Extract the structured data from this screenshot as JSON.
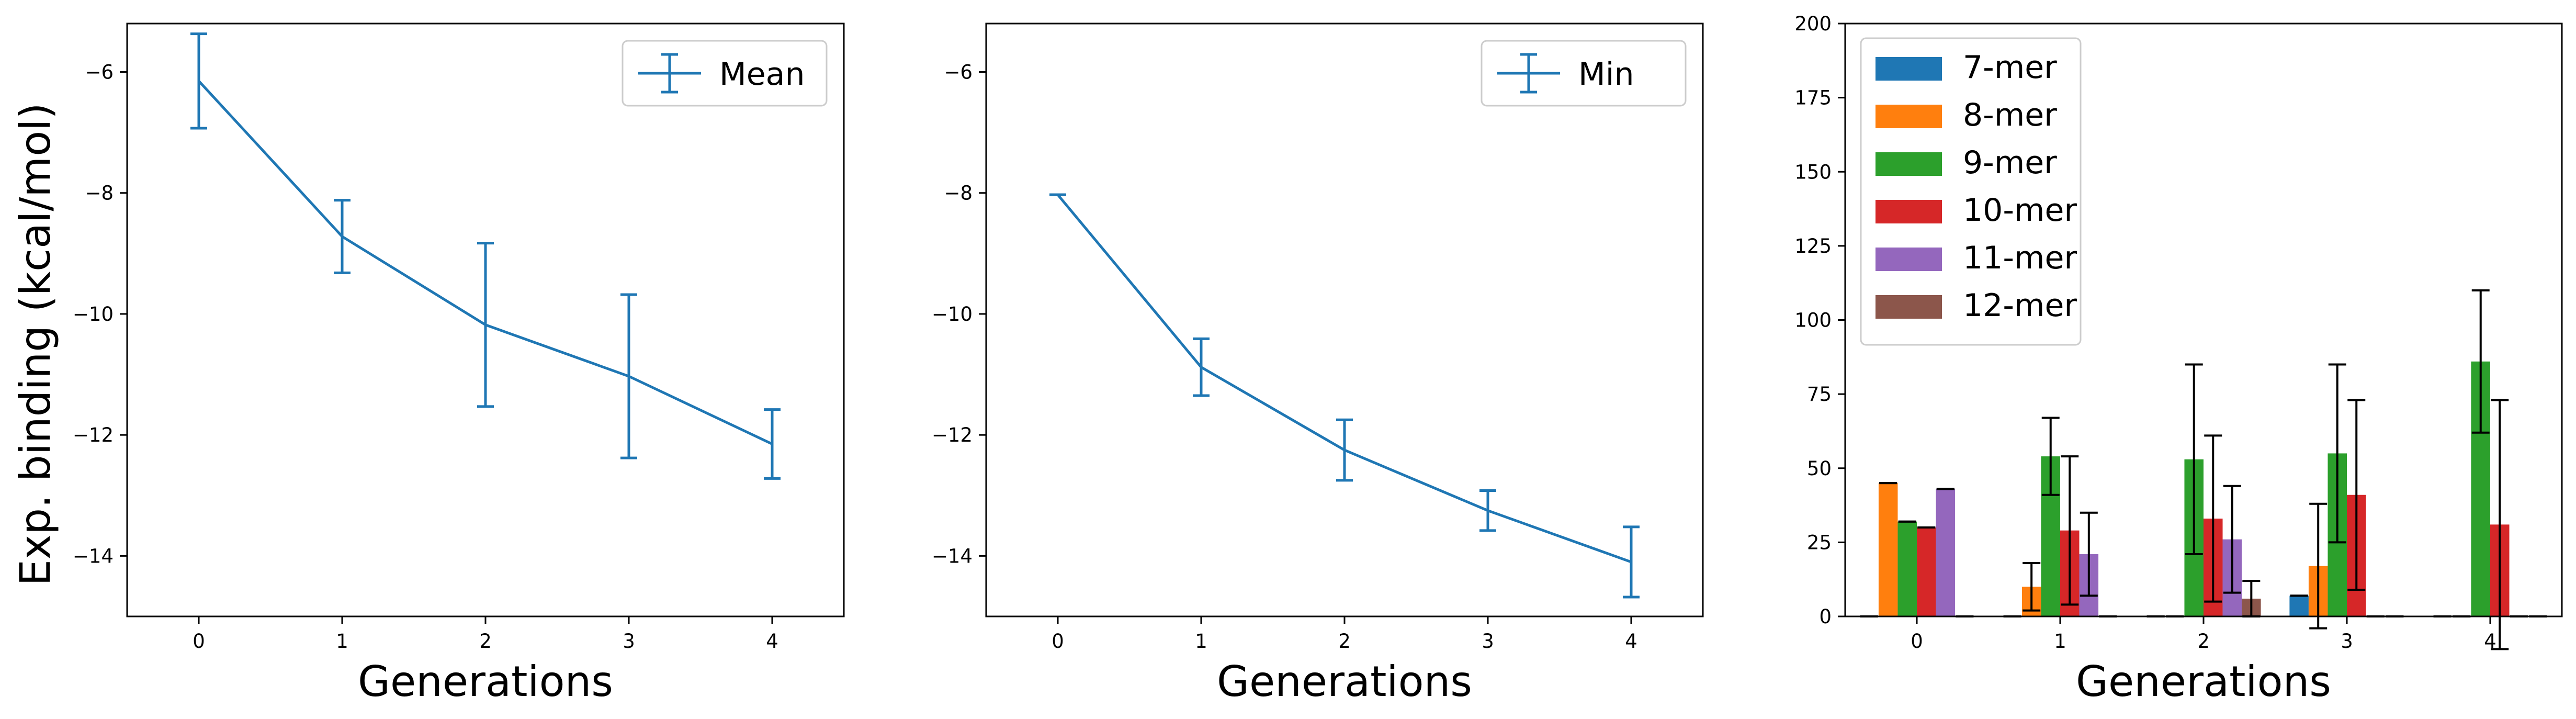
{
  "figure": {
    "shared_ylabel": "Exp. binding (kcal/mol)"
  },
  "chart_data": [
    {
      "type": "line",
      "title": "",
      "xlabel": "Generations",
      "ylabel": "Exp. binding (kcal/mol)",
      "x": [
        0,
        1,
        2,
        3,
        4
      ],
      "xticks": [
        "0",
        "1",
        "2",
        "3",
        "4"
      ],
      "xlim": [
        -0.5,
        4.5
      ],
      "ylim": [
        -15,
        -5.2
      ],
      "yticks": [
        -14,
        -12,
        -10,
        -8,
        -6
      ],
      "ytick_labels": [
        "−14",
        "−12",
        "−10",
        "−8",
        "−6"
      ],
      "legend_position": "upper right",
      "grid": false,
      "series": [
        {
          "name": "Mean",
          "color": "#1f77b4",
          "values": [
            -6.15,
            -8.72,
            -10.18,
            -11.03,
            -12.15
          ],
          "errors": [
            0.78,
            0.6,
            1.35,
            1.35,
            0.57
          ]
        }
      ]
    },
    {
      "type": "line",
      "title": "",
      "xlabel": "Generations",
      "ylabel": "",
      "x": [
        0,
        1,
        2,
        3,
        4
      ],
      "xticks": [
        "0",
        "1",
        "2",
        "3",
        "4"
      ],
      "xlim": [
        -0.5,
        4.5
      ],
      "ylim": [
        -15,
        -5.2
      ],
      "yticks": [
        -14,
        -12,
        -10,
        -8,
        -6
      ],
      "ytick_labels": [
        "−14",
        "−12",
        "−10",
        "−8",
        "−6"
      ],
      "legend_position": "upper right",
      "grid": false,
      "series": [
        {
          "name": "Min",
          "color": "#1f77b4",
          "values": [
            -8.03,
            -10.88,
            -12.25,
            -13.25,
            -14.1
          ],
          "errors": [
            0.0,
            0.47,
            0.5,
            0.33,
            0.58
          ]
        }
      ]
    },
    {
      "type": "bar",
      "title": "",
      "xlabel": "Generations",
      "ylabel": "",
      "categories": [
        "0",
        "1",
        "2",
        "3",
        "4"
      ],
      "ylim": [
        0,
        200
      ],
      "yticks": [
        0,
        25,
        50,
        75,
        100,
        125,
        150,
        175,
        200
      ],
      "ytick_labels": [
        "0",
        "25",
        "50",
        "75",
        "100",
        "125",
        "150",
        "175",
        "200"
      ],
      "legend_position": "upper left",
      "grid": false,
      "series": [
        {
          "name": "7-mer",
          "color": "#1f77b4",
          "values": [
            0,
            0,
            0,
            7,
            0
          ],
          "errors": [
            0,
            0,
            0,
            0,
            0
          ]
        },
        {
          "name": "8-mer",
          "color": "#ff7f0e",
          "values": [
            45,
            10,
            0,
            17,
            0
          ],
          "errors": [
            0,
            8,
            0,
            21,
            0
          ]
        },
        {
          "name": "9-mer",
          "color": "#2ca02c",
          "values": [
            32,
            54,
            53,
            55,
            86
          ],
          "errors": [
            0,
            13,
            32,
            30,
            24
          ]
        },
        {
          "name": "10-mer",
          "color": "#d62728",
          "values": [
            30,
            29,
            33,
            41,
            31
          ],
          "errors": [
            0,
            25,
            28,
            32,
            42
          ]
        },
        {
          "name": "11-mer",
          "color": "#9467bd",
          "values": [
            43,
            21,
            26,
            0,
            0
          ],
          "errors": [
            0,
            14,
            18,
            0,
            0
          ]
        },
        {
          "name": "12-mer",
          "color": "#8c564b",
          "values": [
            0,
            0,
            6,
            0,
            0
          ],
          "errors": [
            0,
            0,
            6,
            0,
            0
          ]
        }
      ]
    }
  ]
}
